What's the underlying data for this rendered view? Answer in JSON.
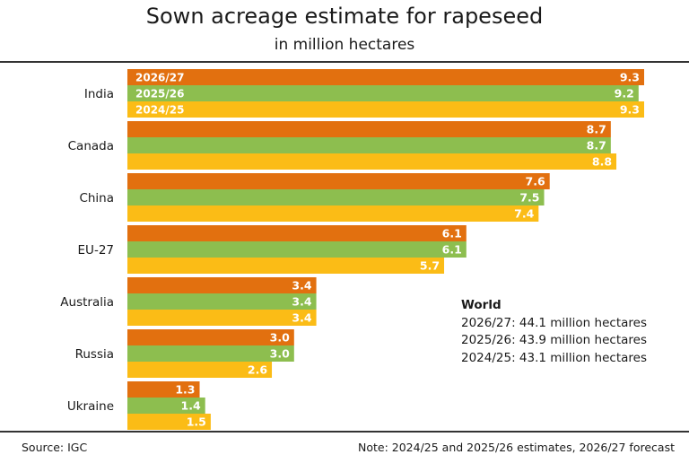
{
  "chart_data": {
    "type": "bar",
    "orientation": "horizontal",
    "title": "Sown acreage estimate for rapeseed",
    "subtitle": "in million hectares",
    "categories": [
      "India",
      "Canada",
      "China",
      "EU-27",
      "Australia",
      "Russia",
      "Ukraine"
    ],
    "series": [
      {
        "name": "2026/27",
        "color": "#E2700F",
        "values": [
          9.3,
          8.7,
          7.6,
          6.1,
          3.4,
          3.0,
          1.3
        ]
      },
      {
        "name": "2025/26",
        "color": "#8DBE4F",
        "values": [
          9.2,
          8.7,
          7.5,
          6.1,
          3.4,
          3.0,
          1.4
        ]
      },
      {
        "name": "2024/25",
        "color": "#FBBC16",
        "values": [
          9.3,
          8.8,
          7.4,
          5.7,
          3.4,
          2.6,
          1.5
        ]
      }
    ],
    "xlim": [
      0,
      9.3
    ],
    "grid": false,
    "legend": "inside first bars",
    "world": {
      "heading": "World",
      "lines": [
        "2026/27: 44.1 million hectares",
        "2025/26: 43.9 million hectares",
        "2024/25: 43.1 million hectares"
      ]
    },
    "source": "Source: IGC",
    "note": "Note: 2024/25 and 2025/26 estimates, 2026/27 forecast"
  }
}
